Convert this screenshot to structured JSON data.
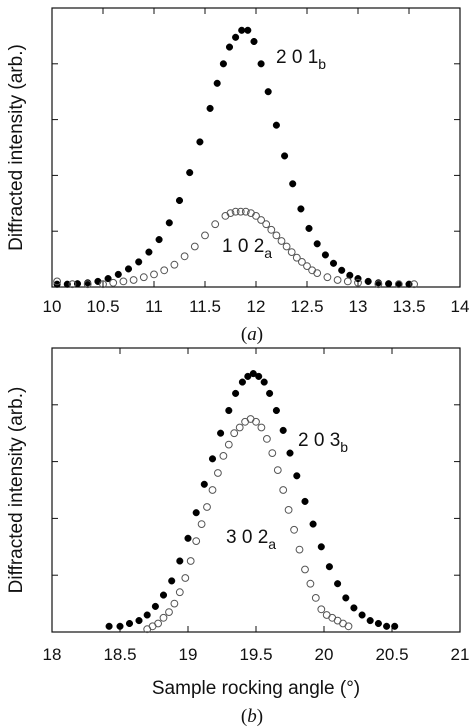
{
  "chart_data": [
    {
      "type": "scatter",
      "panel": "a",
      "panel_label": "a",
      "xlabel": "",
      "ylabel": "Diffracted intensity (arb.)",
      "xlim": [
        10,
        14
      ],
      "ylim": [
        0,
        1.0
      ],
      "x_ticks": [
        "10",
        "10.5",
        "11",
        "11.5",
        "12",
        "12.5",
        "13",
        "13.5",
        "14"
      ],
      "grid": false,
      "annotations": [
        {
          "main": "2 0 1",
          "sub": "b",
          "series": "201b"
        },
        {
          "main": "1 0 2",
          "sub": "a",
          "series": "102a"
        }
      ],
      "series": [
        {
          "marker": "filled-circle",
          "color": "#000000",
          "x": [
            10.05,
            10.15,
            10.25,
            10.35,
            10.45,
            10.55,
            10.65,
            10.75,
            10.85,
            10.95,
            11.05,
            11.15,
            11.25,
            11.35,
            11.45,
            11.55,
            11.62,
            11.68,
            11.74,
            11.8,
            11.86,
            11.92,
            11.98,
            12.05,
            12.12,
            12.2,
            12.28,
            12.36,
            12.44,
            12.52,
            12.6,
            12.68,
            12.76,
            12.84,
            12.92,
            13.0,
            13.1,
            13.2,
            13.3,
            13.4,
            13.5
          ],
          "y": [
            0.01,
            0.01,
            0.012,
            0.015,
            0.02,
            0.03,
            0.045,
            0.065,
            0.09,
            0.125,
            0.17,
            0.23,
            0.31,
            0.41,
            0.52,
            0.64,
            0.73,
            0.8,
            0.86,
            0.895,
            0.92,
            0.92,
            0.88,
            0.8,
            0.7,
            0.58,
            0.47,
            0.37,
            0.28,
            0.21,
            0.155,
            0.115,
            0.085,
            0.06,
            0.042,
            0.03,
            0.02,
            0.015,
            0.012,
            0.01,
            0.01
          ]
        },
        {
          "marker": "open-circle",
          "color": "#555555",
          "x": [
            10.05,
            10.2,
            10.35,
            10.5,
            10.6,
            10.7,
            10.8,
            10.9,
            11.0,
            11.1,
            11.2,
            11.3,
            11.4,
            11.5,
            11.6,
            11.7,
            11.75,
            11.8,
            11.85,
            11.9,
            11.95,
            12.0,
            12.05,
            12.1,
            12.15,
            12.2,
            12.25,
            12.3,
            12.35,
            12.4,
            12.45,
            12.5,
            12.55,
            12.6,
            12.7,
            12.8,
            12.9,
            13.0,
            13.2,
            13.4,
            13.55
          ],
          "y": [
            0.02,
            0.01,
            0.01,
            0.01,
            0.015,
            0.02,
            0.025,
            0.035,
            0.045,
            0.06,
            0.08,
            0.11,
            0.145,
            0.185,
            0.225,
            0.255,
            0.265,
            0.27,
            0.27,
            0.27,
            0.265,
            0.255,
            0.24,
            0.225,
            0.205,
            0.185,
            0.165,
            0.145,
            0.125,
            0.105,
            0.09,
            0.075,
            0.06,
            0.05,
            0.035,
            0.025,
            0.02,
            0.015,
            0.01,
            0.01,
            0.01
          ]
        }
      ]
    },
    {
      "type": "scatter",
      "panel": "b",
      "panel_label": "b",
      "xlabel": "Sample rocking angle (°)",
      "ylabel": "Diffracted intensity (arb.)",
      "xlim": [
        18,
        21
      ],
      "ylim": [
        0,
        1.0
      ],
      "x_ticks": [
        "18",
        "18.5",
        "19",
        "19.5",
        "20",
        "20.5",
        "21"
      ],
      "grid": false,
      "annotations": [
        {
          "main": "2 0 3",
          "sub": "b",
          "series": "203b"
        },
        {
          "main": "3 0 2",
          "sub": "a",
          "series": "302a"
        }
      ],
      "series": [
        {
          "marker": "filled-circle",
          "color": "#000000",
          "x": [
            18.42,
            18.5,
            18.57,
            18.64,
            18.7,
            18.76,
            18.82,
            18.88,
            18.94,
            19.0,
            19.06,
            19.12,
            19.18,
            19.24,
            19.3,
            19.35,
            19.4,
            19.44,
            19.48,
            19.52,
            19.56,
            19.6,
            19.65,
            19.7,
            19.75,
            19.8,
            19.86,
            19.92,
            19.98,
            20.04,
            20.1,
            20.16,
            20.22,
            20.28,
            20.34,
            20.4,
            20.46,
            20.52
          ],
          "y": [
            0.02,
            0.02,
            0.03,
            0.04,
            0.06,
            0.09,
            0.13,
            0.18,
            0.25,
            0.33,
            0.42,
            0.52,
            0.61,
            0.7,
            0.78,
            0.84,
            0.88,
            0.9,
            0.91,
            0.9,
            0.88,
            0.84,
            0.78,
            0.71,
            0.63,
            0.55,
            0.46,
            0.38,
            0.3,
            0.23,
            0.17,
            0.12,
            0.085,
            0.06,
            0.04,
            0.03,
            0.02,
            0.02
          ]
        },
        {
          "marker": "open-circle",
          "color": "#555555",
          "x": [
            18.7,
            18.74,
            18.78,
            18.82,
            18.86,
            18.9,
            18.94,
            18.98,
            19.02,
            19.06,
            19.1,
            19.14,
            19.18,
            19.22,
            19.26,
            19.3,
            19.34,
            19.38,
            19.42,
            19.46,
            19.5,
            19.54,
            19.58,
            19.62,
            19.66,
            19.7,
            19.74,
            19.78,
            19.82,
            19.86,
            19.9,
            19.94,
            19.98,
            20.02,
            20.06,
            20.1,
            20.14,
            20.18
          ],
          "y": [
            0.01,
            0.02,
            0.03,
            0.05,
            0.07,
            0.1,
            0.14,
            0.19,
            0.25,
            0.32,
            0.38,
            0.44,
            0.5,
            0.56,
            0.62,
            0.66,
            0.7,
            0.72,
            0.74,
            0.75,
            0.74,
            0.72,
            0.68,
            0.63,
            0.57,
            0.5,
            0.43,
            0.36,
            0.29,
            0.22,
            0.17,
            0.12,
            0.08,
            0.06,
            0.05,
            0.04,
            0.03,
            0.02
          ]
        }
      ]
    }
  ]
}
